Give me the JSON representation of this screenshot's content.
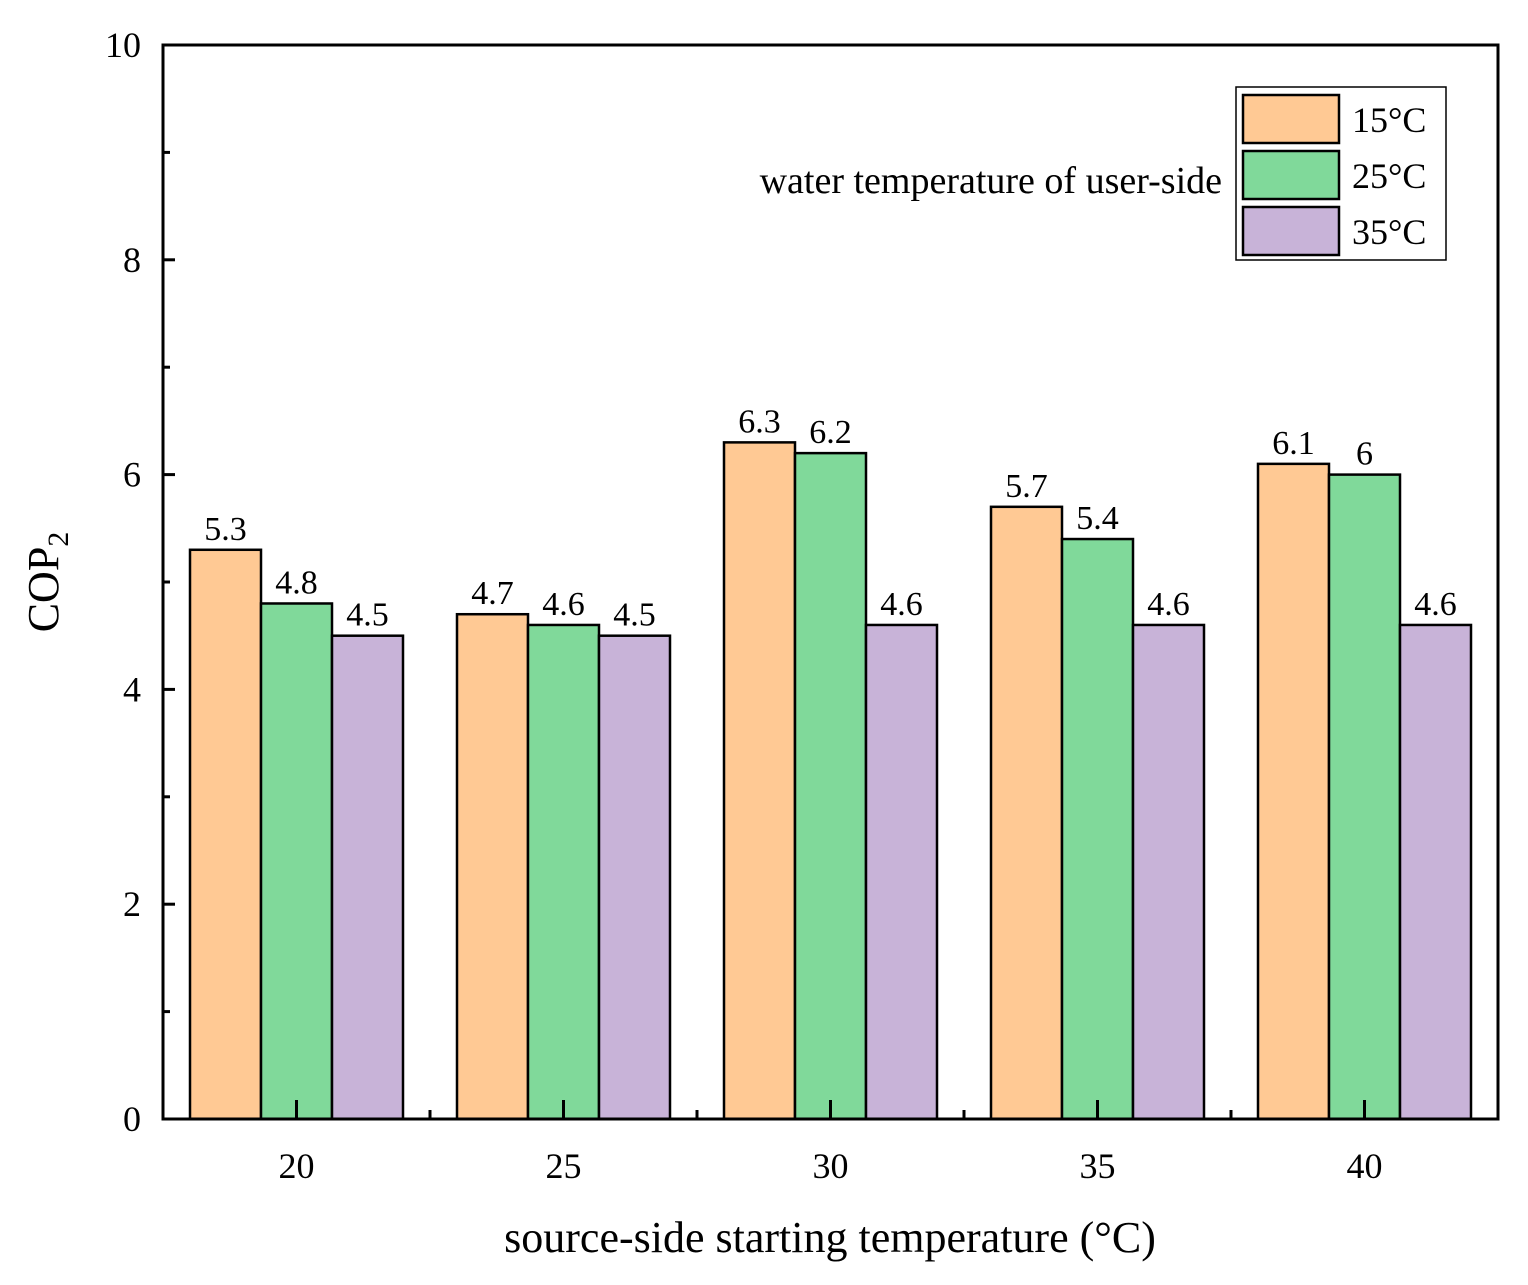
{
  "chart_data": {
    "type": "bar",
    "title": "",
    "xlabel": "source-side starting temperature (°C)",
    "ylabel_main": "COP",
    "ylabel_sub": "2",
    "categories": [
      "20",
      "25",
      "30",
      "35",
      "40"
    ],
    "ylim": [
      0,
      10
    ],
    "yticks": [
      0,
      2,
      4,
      6,
      8,
      10
    ],
    "ytick_labels": [
      "0",
      "2",
      "4",
      "6",
      "8",
      "10"
    ],
    "legend_title": "water temperature of user-side",
    "legend_position": "top-right",
    "grid": false,
    "series": [
      {
        "name": "15°C",
        "color": "#FFC994",
        "values": [
          5.3,
          4.7,
          6.3,
          5.7,
          6.1
        ],
        "labels": [
          "5.3",
          "4.7",
          "6.3",
          "5.7",
          "6.1"
        ]
      },
      {
        "name": "25°C",
        "color": "#80D99A",
        "values": [
          4.8,
          4.6,
          6.2,
          5.4,
          6.0
        ],
        "labels": [
          "4.8",
          "4.6",
          "6.2",
          "5.4",
          "6"
        ]
      },
      {
        "name": "35°C",
        "color": "#C8B3D8",
        "values": [
          4.5,
          4.5,
          4.6,
          4.6,
          4.6
        ],
        "labels": [
          "4.5",
          "4.5",
          "4.6",
          "4.6",
          "4.6"
        ]
      }
    ]
  }
}
